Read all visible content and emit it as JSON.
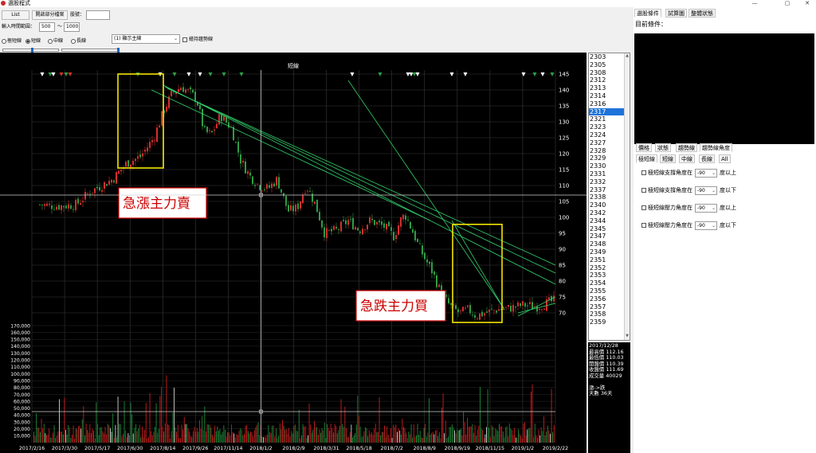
{
  "window": {
    "title": "選股程式"
  },
  "toolbar": {
    "list_label": "List",
    "open_file_label": "開啟部分檔案",
    "stock_no_label": "股號：",
    "stock_no_value": "",
    "range_label": "輸入時間範圍：",
    "range_from": "500",
    "range_sep": "～",
    "range_to": "1000",
    "radios": [
      {
        "label": "極短線",
        "checked": false
      },
      {
        "label": "短線",
        "checked": true
      },
      {
        "label": "中線",
        "checked": false
      },
      {
        "label": "長線",
        "checked": false
      }
    ],
    "display_select": "(1) 顯示主線",
    "trend_checkbox": "繪持趨勢線"
  },
  "chart_data": {
    "type": "candlestick",
    "title": "短線",
    "y_ticks": [
      70,
      75,
      80,
      85,
      90,
      95,
      100,
      105,
      110,
      115,
      120,
      125,
      130,
      135,
      140,
      145
    ],
    "volume_ticks": [
      "10,000",
      "20,000",
      "30,000",
      "40,000",
      "50,000",
      "60,000",
      "70,000",
      "80,000",
      "90,000",
      "100,000",
      "110,000",
      "120,000",
      "130,000",
      "140,000",
      "150,000",
      "160,000",
      "170,000"
    ],
    "x_ticks": [
      "2017/2/16",
      "2017/3/30",
      "2017/5/17",
      "2017/6/30",
      "2017/8/14",
      "2017/9/26",
      "2017/11/14",
      "2018/1/2",
      "2018/2/9",
      "2018/3/31",
      "2018/5/18",
      "2018/7/2",
      "2018/8/9",
      "2018/9/19",
      "2018/11/15",
      "2019/1/2",
      "2019/2/22"
    ],
    "price_path": [
      [
        0,
        104
      ],
      [
        20,
        103.5
      ],
      [
        40,
        104
      ],
      [
        55,
        108
      ],
      [
        80,
        112
      ],
      [
        95,
        117
      ],
      [
        110,
        119
      ],
      [
        125,
        125
      ],
      [
        135,
        133
      ],
      [
        145,
        139
      ],
      [
        155,
        141
      ],
      [
        165,
        139
      ],
      [
        172,
        137
      ],
      [
        180,
        127
      ],
      [
        188,
        126
      ],
      [
        198,
        132
      ],
      [
        210,
        128
      ],
      [
        220,
        118
      ],
      [
        230,
        113
      ],
      [
        240,
        110
      ],
      [
        250,
        109
      ],
      [
        260,
        112
      ],
      [
        272,
        102
      ],
      [
        282,
        103
      ],
      [
        292,
        110
      ],
      [
        302,
        104
      ],
      [
        312,
        95
      ],
      [
        325,
        96
      ],
      [
        338,
        99
      ],
      [
        350,
        96
      ],
      [
        362,
        99
      ],
      [
        378,
        97
      ],
      [
        388,
        94
      ],
      [
        395,
        99
      ],
      [
        400,
        101
      ],
      [
        408,
        96
      ],
      [
        415,
        91
      ],
      [
        422,
        87
      ],
      [
        430,
        83
      ],
      [
        440,
        76
      ],
      [
        450,
        72
      ],
      [
        460,
        70
      ],
      [
        470,
        71
      ],
      [
        478,
        69
      ],
      [
        488,
        70
      ],
      [
        500,
        71
      ],
      [
        515,
        71.5
      ],
      [
        530,
        72.5
      ],
      [
        545,
        72
      ],
      [
        565,
        74
      ]
    ],
    "annotations": [
      "急漲主力賣",
      "急跌主力買"
    ],
    "crosshair": {
      "date": "2018/1/2",
      "price": 107
    },
    "grid": true
  },
  "codelist": {
    "codes": [
      "2303",
      "2305",
      "2308",
      "2312",
      "2313",
      "2314",
      "2316",
      "2317",
      "2321",
      "2323",
      "2324",
      "2327",
      "2328",
      "2329",
      "2330",
      "2331",
      "2332",
      "2337",
      "2338",
      "2340",
      "2342",
      "2344",
      "2345",
      "2347",
      "2348",
      "2349",
      "2351",
      "2352",
      "2353",
      "2354",
      "2355",
      "2356",
      "2357",
      "2358",
      "2359"
    ],
    "selected": "2317"
  },
  "info": {
    "date": "2017/12/28",
    "high_label": "最高價",
    "high": "112.16",
    "low_label": "最低價",
    "low": "110.03",
    "open_label": "開盤價",
    "open": "110.39",
    "close_label": "收盤價",
    "close": "111.69",
    "volume_label": "成交量",
    "volume": "40029",
    "trend": "漲->跌",
    "days": "天數 36天"
  },
  "right": {
    "top_tabs": [
      "選股條件",
      "試算圖",
      "整體狀態"
    ],
    "cond_label": "目前條件：",
    "tabs2": [
      "價格",
      "狀態",
      "趨勢線",
      "趨勢線角度"
    ],
    "tabs3": [
      "極短線",
      "短線",
      "中線",
      "長線",
      "All"
    ],
    "rows": [
      {
        "label": "極短線支撐角度在",
        "value": "-90",
        "suffix": "度以上"
      },
      {
        "label": "極短線支撐角度在",
        "value": "-90",
        "suffix": "度以下"
      },
      {
        "label": "極短線壓力角度在",
        "value": "-90",
        "suffix": "度以上"
      },
      {
        "label": "極短線壓力角度在",
        "value": "-90",
        "suffix": "度以下"
      }
    ]
  },
  "colors": {
    "up": "#d32f2f",
    "down": "#2e9e44",
    "trend": "#32d16a",
    "highlight": "#f2e600",
    "selected": "#1e73d9"
  }
}
